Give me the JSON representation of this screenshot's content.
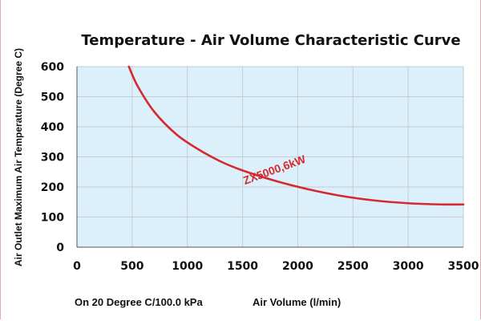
{
  "chart_data": {
    "type": "line",
    "title": "Temperature - Air Volume Characteristic Curve",
    "xlabel": "Air Volume (l/min)",
    "ylabel": "Air Outlet Maximum Air Temperature (Degree C)",
    "condition_note": "On 20 Degree C/100.0 kPa",
    "xlim": [
      0,
      3500
    ],
    "ylim": [
      0,
      600
    ],
    "x_ticks": [
      0,
      500,
      1000,
      1500,
      2000,
      2500,
      3000,
      3500
    ],
    "y_ticks": [
      0,
      100,
      200,
      300,
      400,
      500,
      600
    ],
    "grid": true,
    "series": [
      {
        "name": "ZX5000,6kW",
        "color": "#d42a2f",
        "x": [
          470,
          550,
          700,
          900,
          1100,
          1300,
          1500,
          1800,
          2100,
          2400,
          2700,
          3000,
          3300,
          3500
        ],
        "y": [
          600,
          535,
          450,
          375,
          325,
          285,
          255,
          220,
          192,
          170,
          155,
          146,
          142,
          142
        ]
      }
    ],
    "annotations": [
      {
        "text": "ZX5000,6kW",
        "x": 1800,
        "y": 245,
        "rotate": -20
      }
    ],
    "plot_bg": "#dcf0fb",
    "grid_color": "#c6cdd2"
  }
}
